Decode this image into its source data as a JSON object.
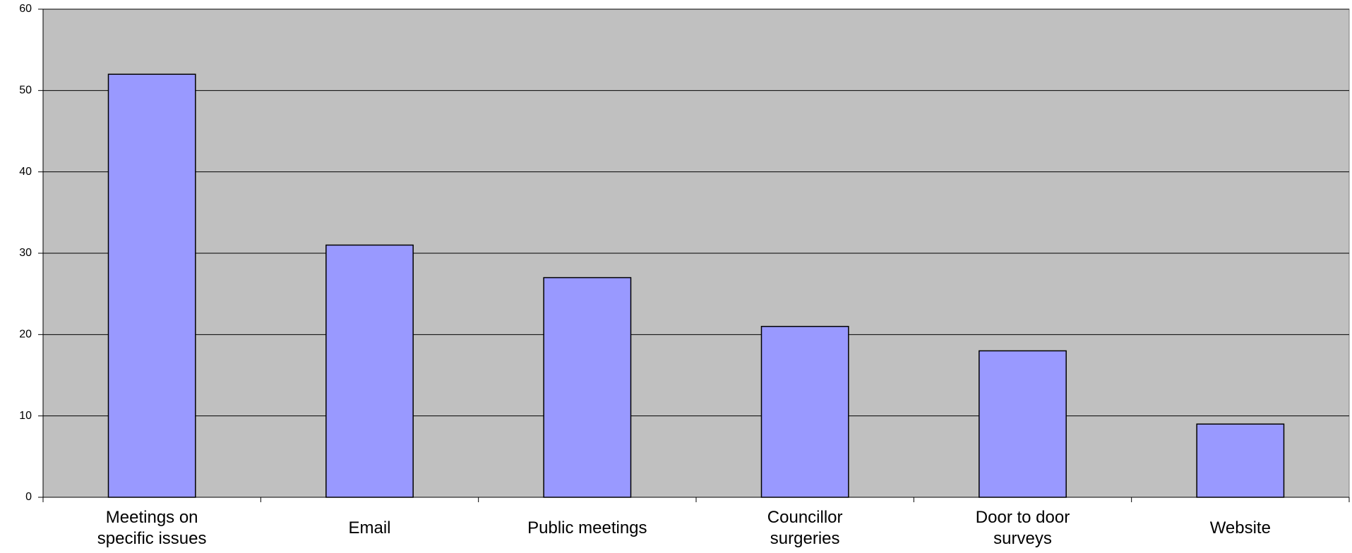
{
  "chart_data": {
    "type": "bar",
    "categories": [
      "Meetings on specific issues",
      "Email",
      "Public meetings",
      "Councillor surgeries",
      "Door to door surveys",
      "Website"
    ],
    "values": [
      52,
      31,
      27,
      21,
      18,
      9
    ],
    "color": "#9999ff",
    "ylim": [
      0,
      60
    ],
    "yticks": [
      0,
      10,
      20,
      30,
      40,
      50,
      60
    ],
    "grid": true
  }
}
